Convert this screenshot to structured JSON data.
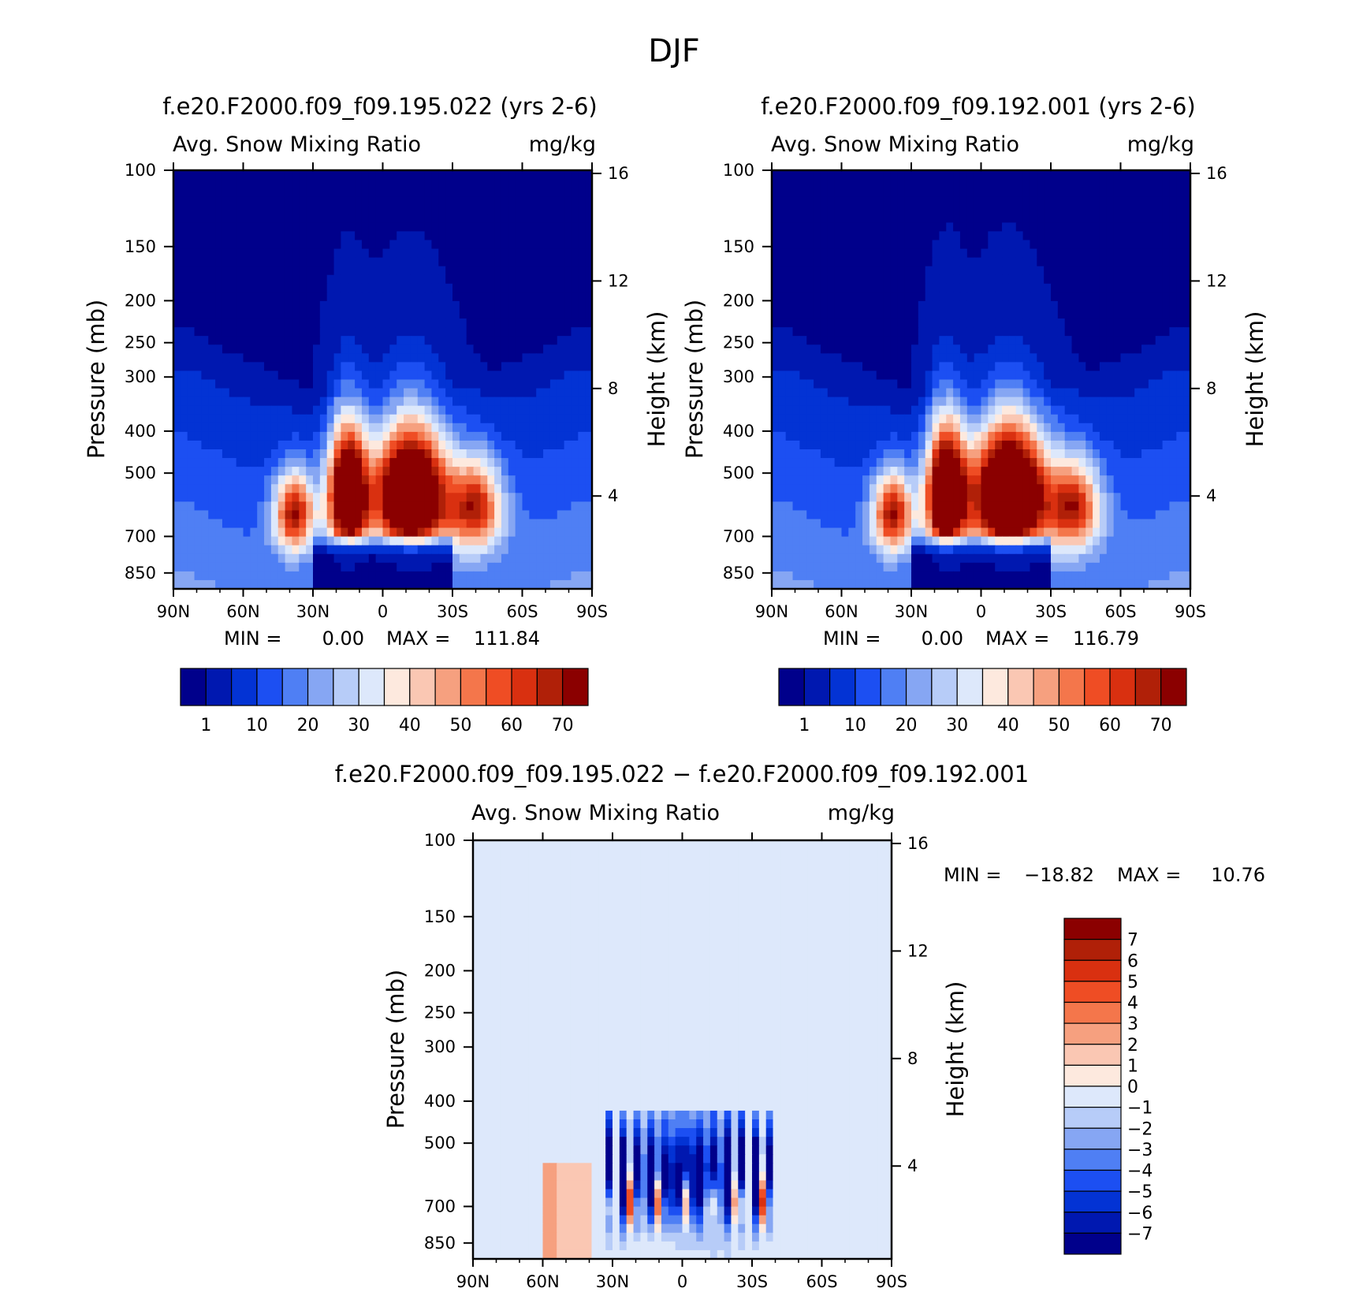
{
  "figure": {
    "title": "DJF"
  },
  "colors": {
    "abs_scale": [
      "#00008b",
      "#0018b0",
      "#0333d4",
      "#1c4ff2",
      "#4f7ff4",
      "#86a6f3",
      "#b7ccf8",
      "#dde8fb",
      "#fde9de",
      "#fac7b3",
      "#f6a07f",
      "#f4764b",
      "#ef4d24",
      "#d93010",
      "#b02008",
      "#8b0000"
    ],
    "diff_scale": [
      "#00008b",
      "#0018b0",
      "#0333d4",
      "#1c4ff2",
      "#4f7ff4",
      "#86a6f3",
      "#b7ccf8",
      "#dde8fb",
      "#fde9de",
      "#fac7b3",
      "#f6a07f",
      "#f4764b",
      "#ef4d24",
      "#d93010",
      "#b02008",
      "#8b0000"
    ]
  },
  "chart_data": [
    {
      "type": "heatmap",
      "title": "f.e20.F2000.f09_f09.195.022 (yrs 2-6)",
      "subtitle_left": "Avg. Snow Mixing Ratio",
      "subtitle_right": "mg/kg",
      "xlabel": "",
      "ylabel": "Pressure (mb)",
      "y2label": "Height (km)",
      "x_ticks": [
        "90N",
        "60N",
        "30N",
        "0",
        "30S",
        "60S",
        "90S"
      ],
      "y_ticks": [
        "100",
        "150",
        "200",
        "250",
        "300",
        "400",
        "500",
        "700",
        "850"
      ],
      "y2_ticks": [
        "16",
        "12",
        "8",
        "4"
      ],
      "ylim": [
        100,
        925
      ],
      "stats": {
        "min_label": "MIN =",
        "min": "0.00",
        "max_label": "MAX =",
        "max": "111.84"
      },
      "colorbar_ticks": [
        "1",
        "10",
        "20",
        "30",
        "40",
        "50",
        "60",
        "70"
      ],
      "field": {
        "kind": "abs",
        "peak_n": 95,
        "peak_s": 105
      }
    },
    {
      "type": "heatmap",
      "title": "f.e20.F2000.f09_f09.192.001 (yrs 2-6)",
      "subtitle_left": "Avg. Snow Mixing Ratio",
      "subtitle_right": "mg/kg",
      "xlabel": "",
      "ylabel": "Pressure (mb)",
      "y2label": "Height (km)",
      "x_ticks": [
        "90N",
        "60N",
        "30N",
        "0",
        "30S",
        "60S",
        "90S"
      ],
      "y_ticks": [
        "100",
        "150",
        "200",
        "250",
        "300",
        "400",
        "500",
        "700",
        "850"
      ],
      "y2_ticks": [
        "16",
        "12",
        "8",
        "4"
      ],
      "ylim": [
        100,
        925
      ],
      "stats": {
        "min_label": "MIN =",
        "min": "0.00",
        "max_label": "MAX =",
        "max": "116.79"
      },
      "colorbar_ticks": [
        "1",
        "10",
        "20",
        "30",
        "40",
        "50",
        "60",
        "70"
      ],
      "field": {
        "kind": "abs",
        "peak_n": 100,
        "peak_s": 112
      }
    },
    {
      "type": "heatmap",
      "title": "f.e20.F2000.f09_f09.195.022 − f.e20.F2000.f09_f09.192.001",
      "subtitle_left": "Avg. Snow Mixing Ratio",
      "subtitle_right": "mg/kg",
      "xlabel": "",
      "ylabel": "Pressure (mb)",
      "y2label": "Height (km)",
      "x_ticks": [
        "90N",
        "60N",
        "30N",
        "0",
        "30S",
        "60S",
        "90S"
      ],
      "y_ticks": [
        "100",
        "150",
        "200",
        "250",
        "300",
        "400",
        "500",
        "700",
        "850"
      ],
      "y2_ticks": [
        "16",
        "12",
        "8",
        "4"
      ],
      "ylim": [
        100,
        925
      ],
      "stats": {
        "min_label": "MIN =",
        "min": "−18.82",
        "max_label": "MAX =",
        "max": "10.76"
      },
      "colorbar_ticks": [
        "7",
        "6",
        "5",
        "4",
        "3",
        "2",
        "1",
        "0",
        "−1",
        "−2",
        "−3",
        "−4",
        "−5",
        "−6",
        "−7"
      ],
      "field": {
        "kind": "diff"
      }
    }
  ]
}
